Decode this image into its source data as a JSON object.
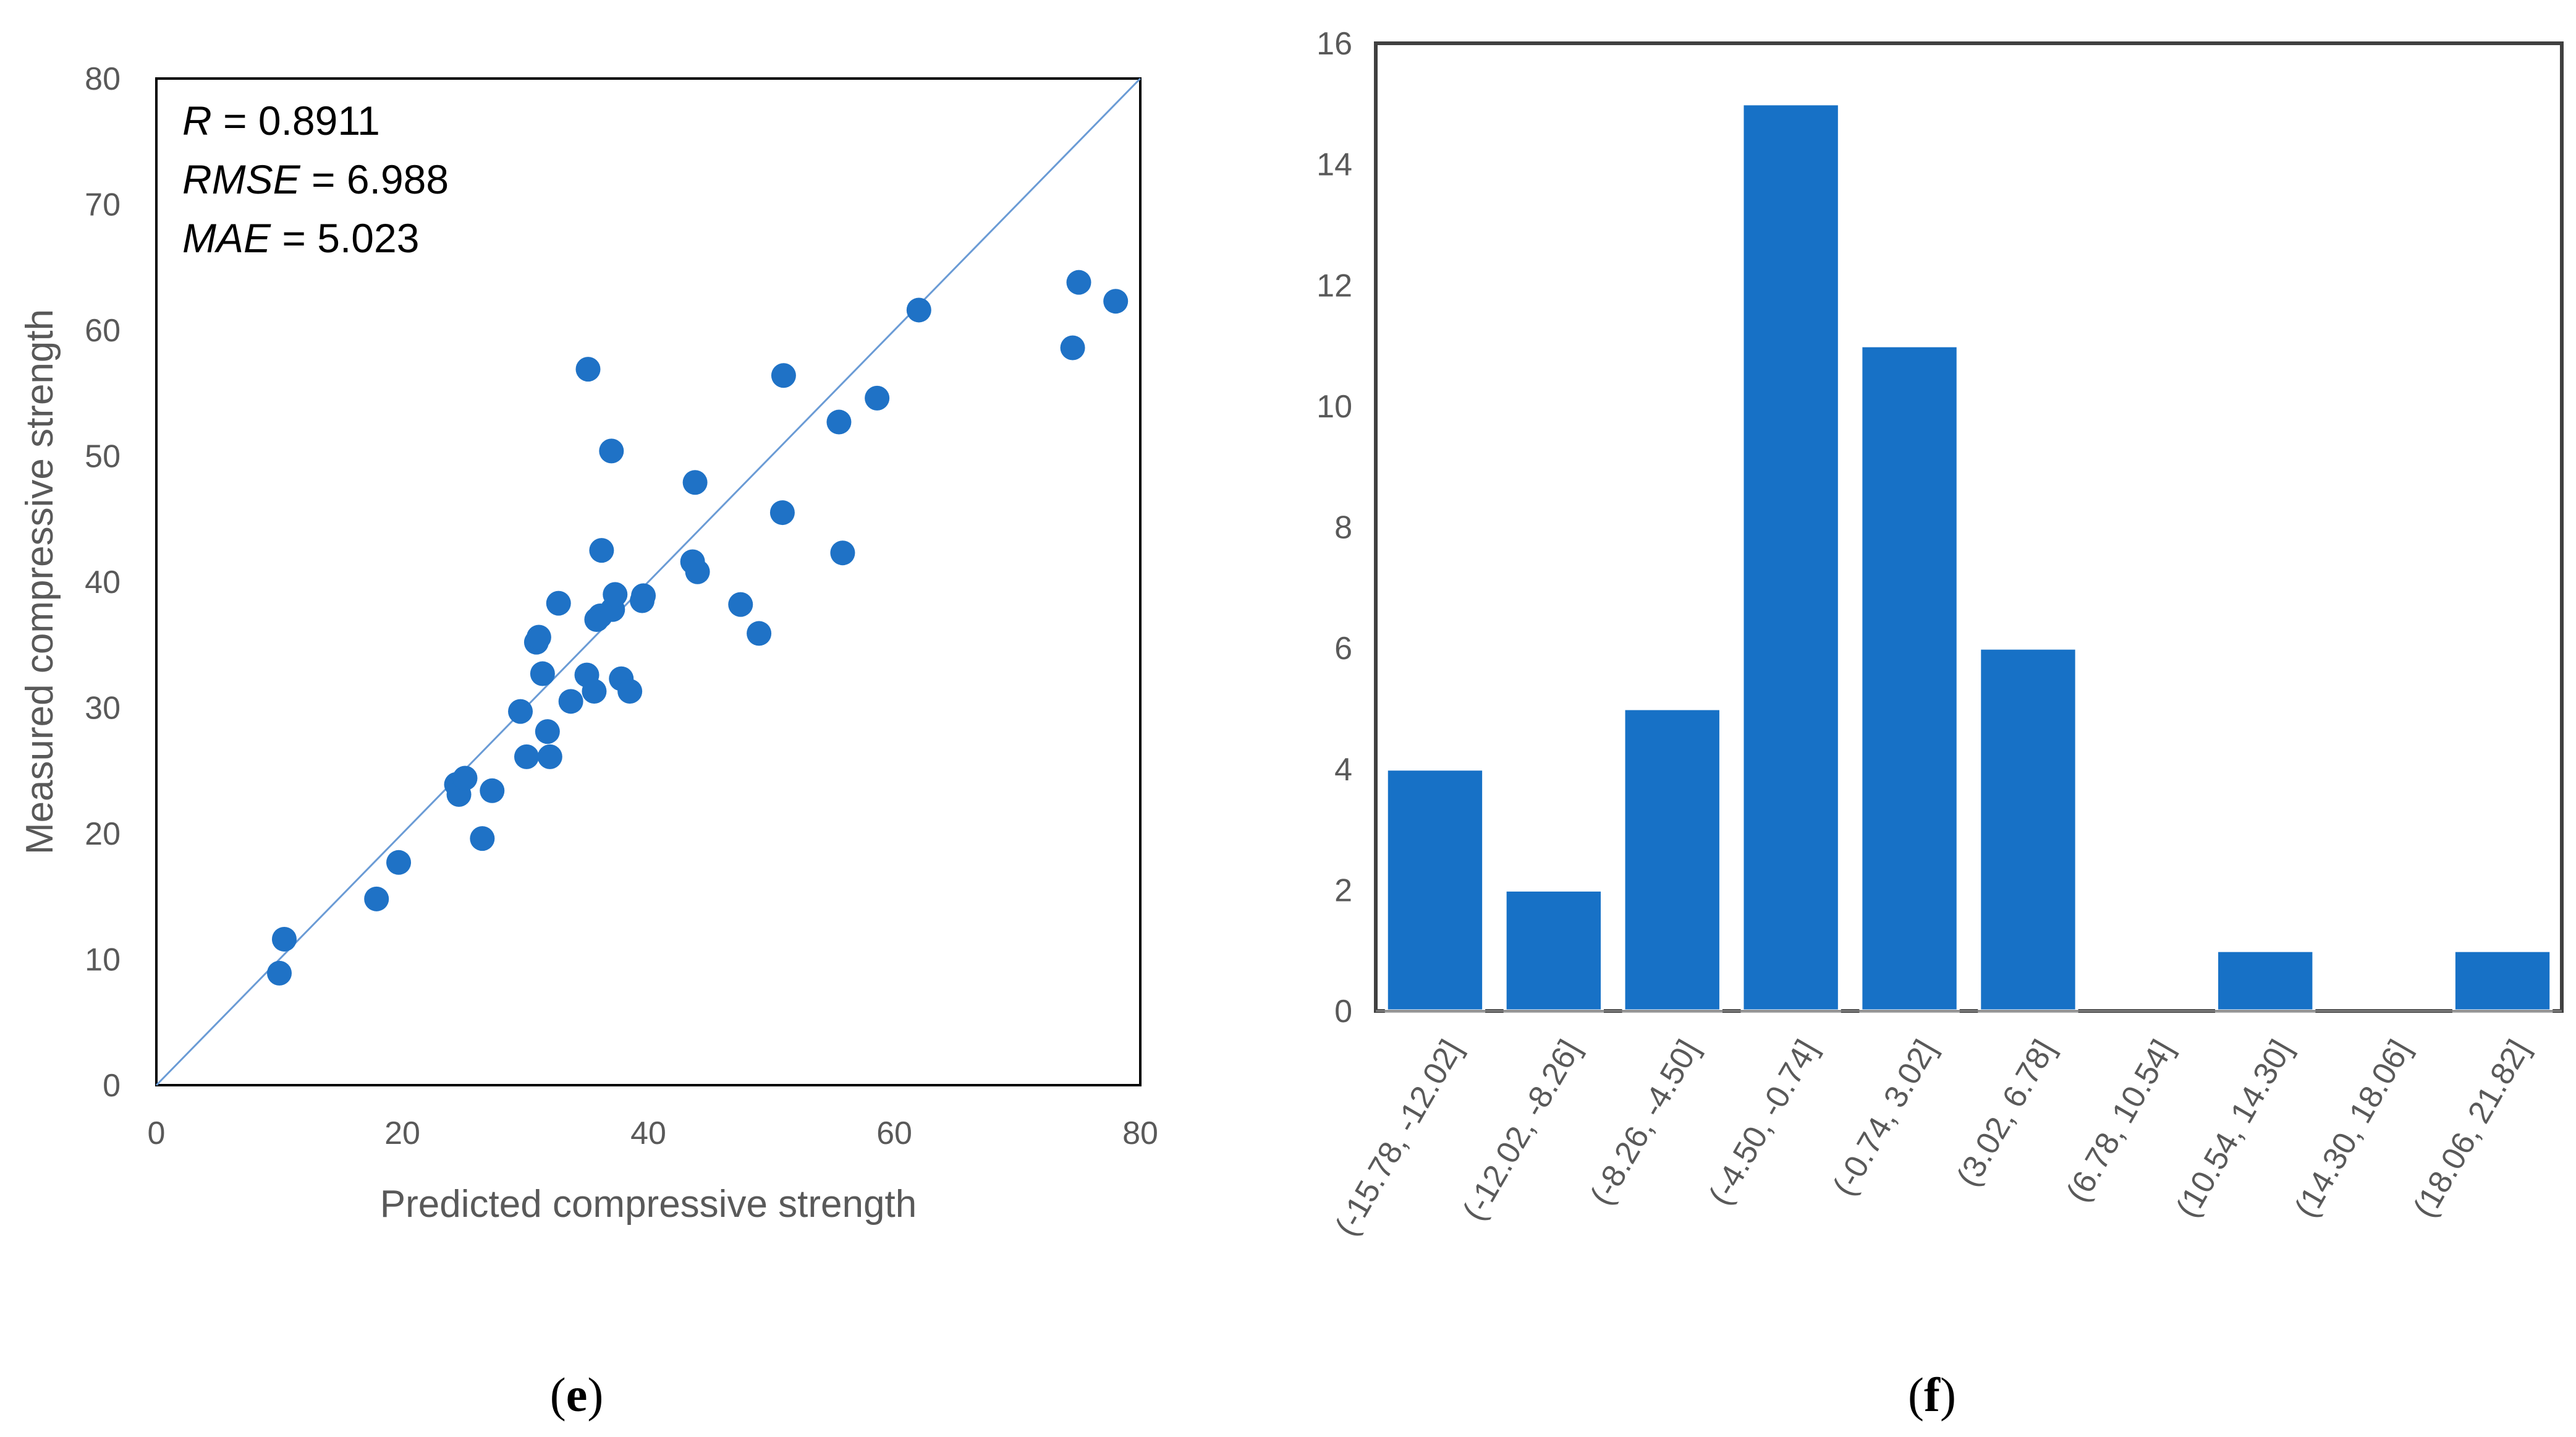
{
  "chart_data": [
    {
      "type": "scatter",
      "panel_label": "e",
      "xlabel": "Predicted compressive strength",
      "ylabel": "Measured compressive strength",
      "xlim": [
        0,
        80
      ],
      "ylim": [
        0,
        80
      ],
      "xticks": [
        "0",
        "20",
        "40",
        "60",
        "80"
      ],
      "yticks": [
        "0",
        "10",
        "20",
        "30",
        "40",
        "50",
        "60",
        "70",
        "80"
      ],
      "reference_line": "y = x",
      "stats": [
        {
          "name": "R",
          "value": "0.8911"
        },
        {
          "name": "RMSE",
          "value": "6.988"
        },
        {
          "name": "MAE",
          "value": "5.023"
        }
      ],
      "points": [
        {
          "x": 10.4,
          "y": 11.6
        },
        {
          "x": 10.0,
          "y": 8.9
        },
        {
          "x": 17.9,
          "y": 14.8
        },
        {
          "x": 19.7,
          "y": 17.7
        },
        {
          "x": 24.4,
          "y": 23.9
        },
        {
          "x": 24.6,
          "y": 23.1
        },
        {
          "x": 25.1,
          "y": 24.4
        },
        {
          "x": 26.5,
          "y": 19.6
        },
        {
          "x": 27.3,
          "y": 23.4
        },
        {
          "x": 29.6,
          "y": 29.7
        },
        {
          "x": 30.1,
          "y": 26.1
        },
        {
          "x": 30.9,
          "y": 35.2
        },
        {
          "x": 31.1,
          "y": 35.6
        },
        {
          "x": 31.4,
          "y": 32.7
        },
        {
          "x": 31.8,
          "y": 28.1
        },
        {
          "x": 32.0,
          "y": 26.1
        },
        {
          "x": 32.7,
          "y": 38.3
        },
        {
          "x": 33.7,
          "y": 30.5
        },
        {
          "x": 35.0,
          "y": 32.6
        },
        {
          "x": 35.1,
          "y": 56.9
        },
        {
          "x": 35.6,
          "y": 31.3
        },
        {
          "x": 35.8,
          "y": 37.0
        },
        {
          "x": 36.1,
          "y": 37.3
        },
        {
          "x": 36.2,
          "y": 42.5
        },
        {
          "x": 37.0,
          "y": 50.4
        },
        {
          "x": 37.1,
          "y": 37.8
        },
        {
          "x": 37.3,
          "y": 39.0
        },
        {
          "x": 37.8,
          "y": 32.3
        },
        {
          "x": 38.5,
          "y": 31.3
        },
        {
          "x": 39.5,
          "y": 38.5
        },
        {
          "x": 39.6,
          "y": 38.9
        },
        {
          "x": 43.6,
          "y": 41.6
        },
        {
          "x": 43.8,
          "y": 47.9
        },
        {
          "x": 44.0,
          "y": 40.8
        },
        {
          "x": 47.5,
          "y": 38.2
        },
        {
          "x": 49.0,
          "y": 35.9
        },
        {
          "x": 50.9,
          "y": 45.5
        },
        {
          "x": 51.0,
          "y": 56.4
        },
        {
          "x": 55.5,
          "y": 52.7
        },
        {
          "x": 55.8,
          "y": 42.3
        },
        {
          "x": 58.6,
          "y": 54.6
        },
        {
          "x": 62.0,
          "y": 61.6
        },
        {
          "x": 74.5,
          "y": 58.6
        },
        {
          "x": 75.0,
          "y": 63.8
        },
        {
          "x": 78.0,
          "y": 62.3
        }
      ],
      "point_color": "#1F72C6",
      "line_color": "#6A9BD5"
    },
    {
      "type": "bar",
      "panel_label": "f",
      "categories": [
        "(-15.78, -12.02]",
        "(-12.02, -8.26]",
        "(-8.26, -4.50]",
        "(-4.50, -0.74]",
        "(-0.74, 3.02]",
        "(3.02, 6.78]",
        "(6.78, 10.54]",
        "(10.54, 14.30]",
        "(14.30, 18.06]",
        "(18.06, 21.82]"
      ],
      "values": [
        4,
        2,
        5,
        15,
        11,
        6,
        0,
        1,
        0,
        1
      ],
      "ylim": [
        0,
        16
      ],
      "yticks": [
        "0",
        "2",
        "4",
        "6",
        "8",
        "10",
        "12",
        "14",
        "16"
      ],
      "bar_color": "#1771C6"
    }
  ]
}
